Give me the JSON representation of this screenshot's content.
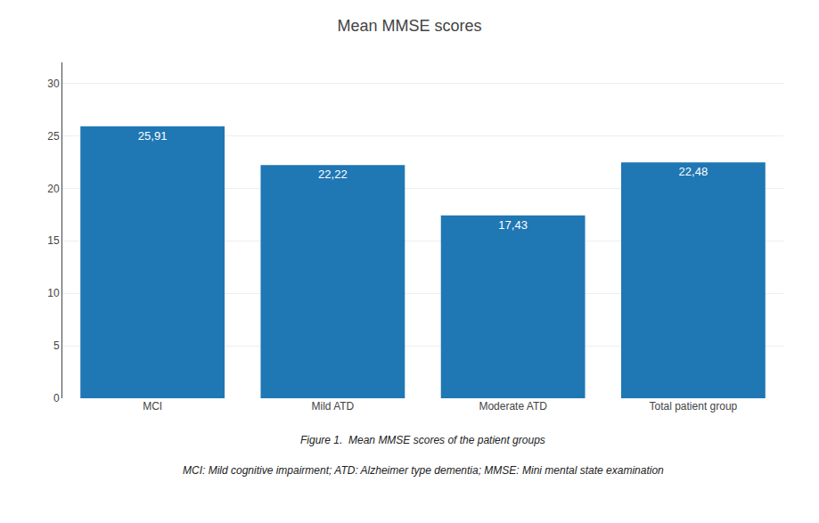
{
  "chart_data": {
    "type": "bar",
    "title": "Mean MMSE scores",
    "categories": [
      "MCI",
      "Mild ATD",
      "Moderate ATD",
      "Total patient group"
    ],
    "values": [
      25.91,
      22.22,
      17.43,
      22.48
    ],
    "value_labels": [
      "25,91",
      "22,22",
      "17,43",
      "22,48"
    ],
    "data_labels": true,
    "ylim": [
      0,
      32
    ],
    "yticks": [
      0,
      5,
      10,
      15,
      20,
      25,
      30
    ],
    "grid": true,
    "annotations": [
      "Figure 1.  Mean MMSE scores of the patient groups",
      "MCI: Mild cognitive impairment; ATD: Alzheimer type dementia; MMSE: Mini mental state examination"
    ]
  }
}
